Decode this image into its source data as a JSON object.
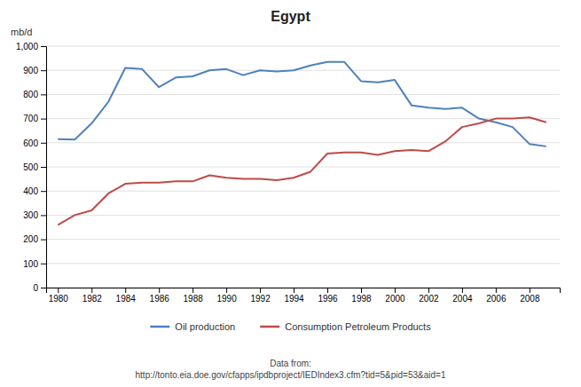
{
  "chart_data": {
    "type": "line",
    "title": "Egypt",
    "y_label": "mb/d",
    "x": [
      1980,
      1981,
      1982,
      1983,
      1984,
      1985,
      1986,
      1987,
      1988,
      1989,
      1990,
      1991,
      1992,
      1993,
      1994,
      1995,
      1996,
      1997,
      1998,
      1999,
      2000,
      2001,
      2002,
      2003,
      2004,
      2005,
      2006,
      2007,
      2008,
      2009
    ],
    "series": [
      {
        "name": "Oil production",
        "color": "#4F81BD",
        "values": [
          615,
          613,
          680,
          770,
          910,
          905,
          830,
          870,
          875,
          900,
          905,
          880,
          900,
          895,
          900,
          920,
          935,
          935,
          855,
          850,
          860,
          755,
          745,
          740,
          745,
          700,
          685,
          665,
          595,
          585
        ]
      },
      {
        "name": "Consumption Petroleum Products",
        "color": "#BE4B48",
        "values": [
          260,
          300,
          320,
          390,
          430,
          435,
          435,
          440,
          440,
          465,
          455,
          450,
          450,
          445,
          455,
          480,
          555,
          560,
          560,
          550,
          565,
          570,
          565,
          605,
          665,
          680,
          700,
          700,
          705,
          685
        ]
      }
    ],
    "xlim": [
      1979.3,
      2009.8
    ],
    "xticks": [
      1980,
      1982,
      1984,
      1986,
      1988,
      1990,
      1992,
      1994,
      1996,
      1998,
      2000,
      2002,
      2004,
      2006,
      2008
    ],
    "ylim": [
      0,
      1000
    ],
    "yticks": [
      0,
      100,
      200,
      300,
      400,
      500,
      600,
      700,
      800,
      900,
      {
        "value": 1000,
        "label": "1,000"
      }
    ],
    "grid": true,
    "legend": "bottom",
    "annotations": [
      "Data from:\nhttp://tonto.eia.doe.gov/cfapps/ipdbproject/IEDIndex3.cfm?tid=5&pid=53&aid=1"
    ]
  }
}
